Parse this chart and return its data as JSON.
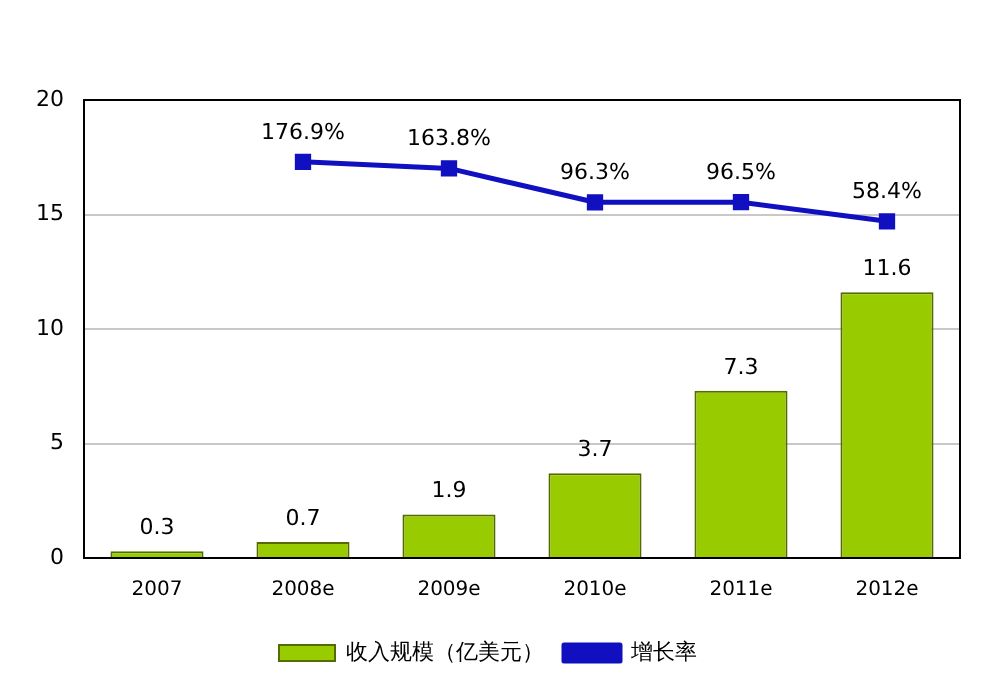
{
  "chart_data": {
    "type": "bar",
    "categories": [
      "2007",
      "2008e",
      "2009e",
      "2010e",
      "2011e",
      "2012e"
    ],
    "series": [
      {
        "name": "收入规模（亿美元）",
        "color": "#99cc00",
        "values": [
          0.3,
          0.7,
          1.9,
          3.7,
          7.3,
          11.6
        ],
        "value_labels": [
          "0.3",
          "0.7",
          "1.9",
          "3.7",
          "7.3",
          "11.6"
        ]
      },
      {
        "name": "增长率",
        "type": "line",
        "axis": "y2",
        "color": "#1010c0",
        "values": [
          null,
          176.9,
          163.8,
          96.3,
          96.5,
          58.4
        ],
        "value_labels": [
          null,
          "176.9%",
          "163.8%",
          "96.3%",
          "96.5%",
          "58.4%"
        ]
      }
    ],
    "ylim": [
      0,
      20
    ],
    "yticks": [
      0,
      5,
      10,
      15,
      20
    ],
    "y2lim": [
      -612,
      300
    ],
    "tick_labels": "y",
    "grid": "y",
    "legend": "bottom",
    "marker": "square"
  }
}
